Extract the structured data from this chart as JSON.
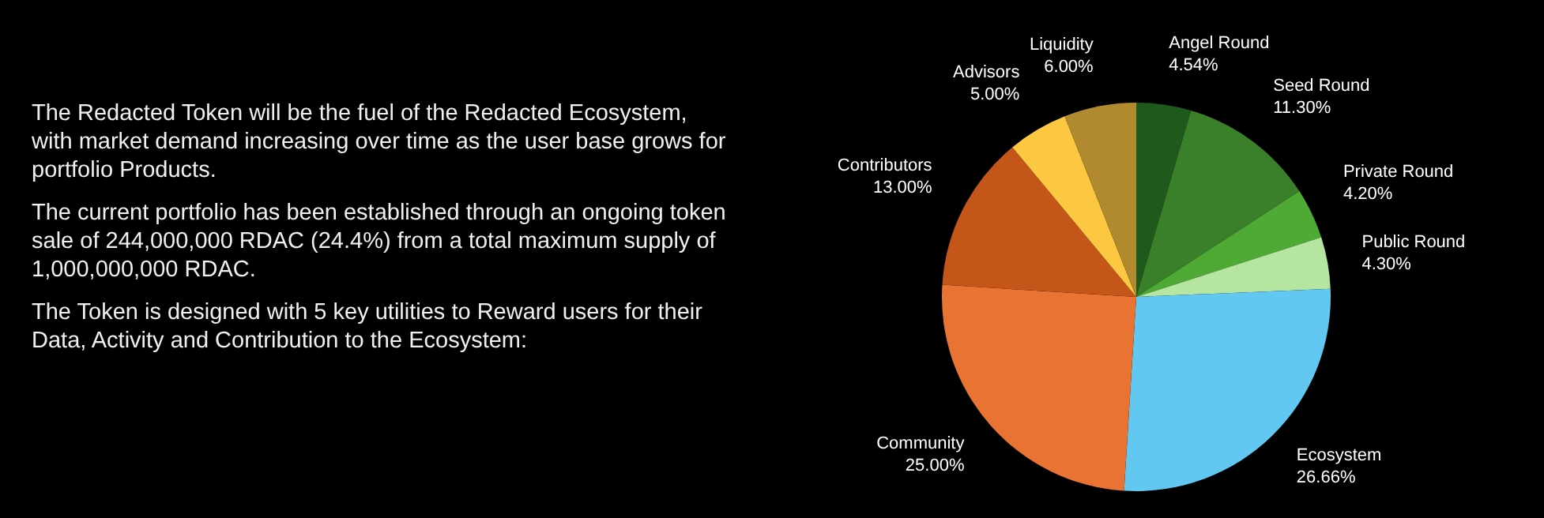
{
  "chart_data": {
    "type": "pie",
    "categories": [
      "Angel Round",
      "Seed Round",
      "Private Round",
      "Public Round",
      "Ecosystem",
      "Community",
      "Contributors",
      "Advisors",
      "Liquidity"
    ],
    "values": [
      4.54,
      11.3,
      4.2,
      4.3,
      26.66,
      25,
      13,
      5,
      6
    ],
    "value_labels": [
      "4.54%",
      "11.30%",
      "4.20%",
      "4.30%",
      "26.66%",
      "25.00%",
      "13.00%",
      "5.00%",
      "6.00%"
    ],
    "colors": [
      "#1f5a1c",
      "#3a7f2a",
      "#4eaa34",
      "#b5e5a0",
      "#62c8f2",
      "#e87332",
      "#c4561a",
      "#fcc841",
      "#b18a30"
    ],
    "annotations": [
      "The Redacted Token will be the fuel of the Redacted Ecosystem, with market demand increasing over time as the user base grows for portfolio Products.",
      "The current portfolio has been established through an ongoing token sale of 244,000,000 RDAC (24.4%) from a total maximum supply of 1,000,000,000 RDAC.",
      "The Token is designed with 5 key utilities to Reward users for their Data, Activity and Contribution to the Ecosystem:"
    ]
  }
}
